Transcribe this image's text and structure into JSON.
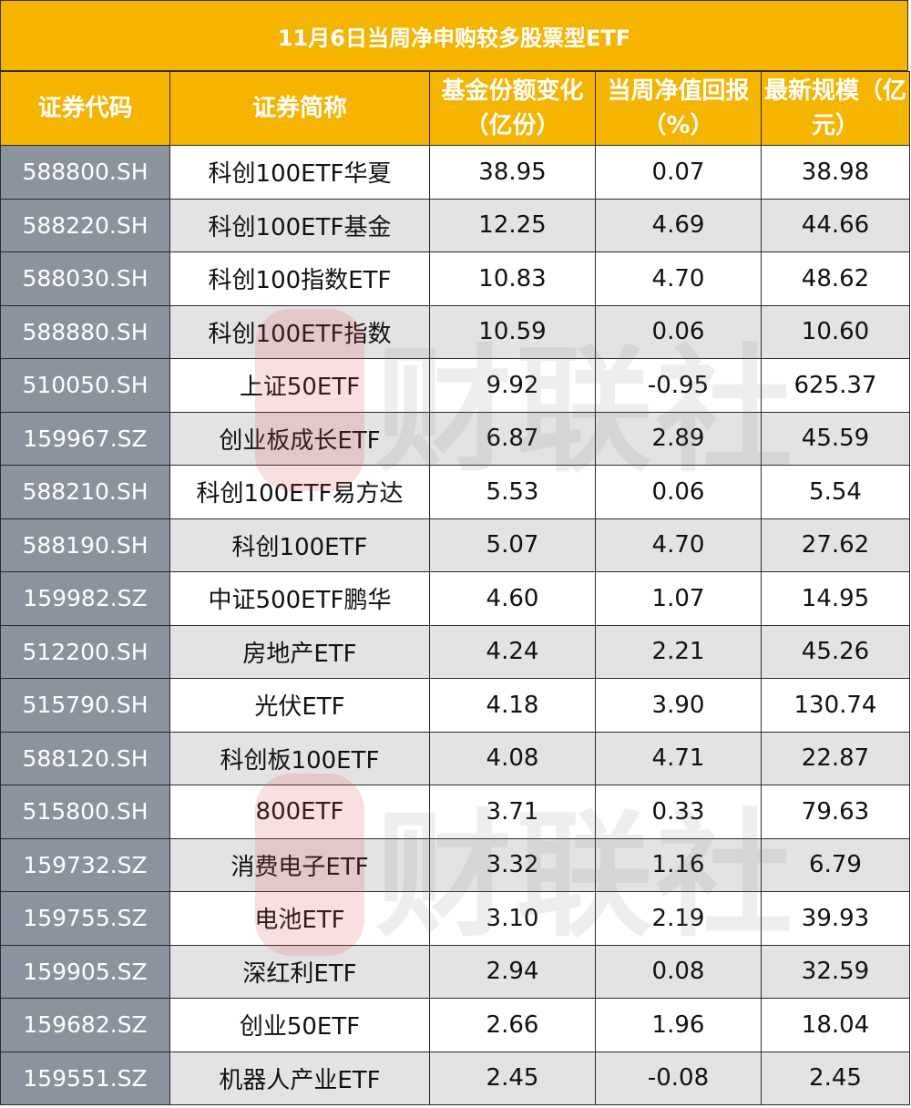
{
  "title": "11月6日当周净申购较多股票型ETF",
  "watermark": "财联社",
  "headers": [
    "证券代码",
    "证券简称",
    "基金份额变化（亿份）",
    "当周净值回报（%）",
    "最新规模（亿元）"
  ],
  "rows": [
    {
      "code": "588800.SH",
      "name": "科创100ETF华夏",
      "share_change": "38.95",
      "weekly_return": "0.07",
      "scale": "38.98"
    },
    {
      "code": "588220.SH",
      "name": "科创100ETF基金",
      "share_change": "12.25",
      "weekly_return": "4.69",
      "scale": "44.66"
    },
    {
      "code": "588030.SH",
      "name": "科创100指数ETF",
      "share_change": "10.83",
      "weekly_return": "4.70",
      "scale": "48.62"
    },
    {
      "code": "588880.SH",
      "name": "科创100ETF指数",
      "share_change": "10.59",
      "weekly_return": "0.06",
      "scale": "10.60"
    },
    {
      "code": "510050.SH",
      "name": "上证50ETF",
      "share_change": "9.92",
      "weekly_return": "-0.95",
      "scale": "625.37"
    },
    {
      "code": "159967.SZ",
      "name": "创业板成长ETF",
      "share_change": "6.87",
      "weekly_return": "2.89",
      "scale": "45.59"
    },
    {
      "code": "588210.SH",
      "name": "科创100ETF易方达",
      "share_change": "5.53",
      "weekly_return": "0.06",
      "scale": "5.54"
    },
    {
      "code": "588190.SH",
      "name": "科创100ETF",
      "share_change": "5.07",
      "weekly_return": "4.70",
      "scale": "27.62"
    },
    {
      "code": "159982.SZ",
      "name": "中证500ETF鹏华",
      "share_change": "4.60",
      "weekly_return": "1.07",
      "scale": "14.95"
    },
    {
      "code": "512200.SH",
      "name": "房地产ETF",
      "share_change": "4.24",
      "weekly_return": "2.21",
      "scale": "45.26"
    },
    {
      "code": "515790.SH",
      "name": "光伏ETF",
      "share_change": "4.18",
      "weekly_return": "3.90",
      "scale": "130.74"
    },
    {
      "code": "588120.SH",
      "name": "科创板100ETF",
      "share_change": "4.08",
      "weekly_return": "4.71",
      "scale": "22.87"
    },
    {
      "code": "515800.SH",
      "name": "800ETF",
      "share_change": "3.71",
      "weekly_return": "0.33",
      "scale": "79.63"
    },
    {
      "code": "159732.SZ",
      "name": "消费电子ETF",
      "share_change": "3.32",
      "weekly_return": "1.16",
      "scale": "6.79"
    },
    {
      "code": "159755.SZ",
      "name": "电池ETF",
      "share_change": "3.10",
      "weekly_return": "2.19",
      "scale": "39.93"
    },
    {
      "code": "159905.SZ",
      "name": "深红利ETF",
      "share_change": "2.94",
      "weekly_return": "0.08",
      "scale": "32.59"
    },
    {
      "code": "159682.SZ",
      "name": "创业50ETF",
      "share_change": "2.66",
      "weekly_return": "1.96",
      "scale": "18.04"
    },
    {
      "code": "159551.SZ",
      "name": "机器人产业ETF",
      "share_change": "2.45",
      "weekly_return": "-0.08",
      "scale": "2.45"
    }
  ],
  "colors": {
    "header_bg": "#f5b400",
    "code_bg": "#8a939e",
    "alt_row_bg": "#e3e3e3"
  }
}
